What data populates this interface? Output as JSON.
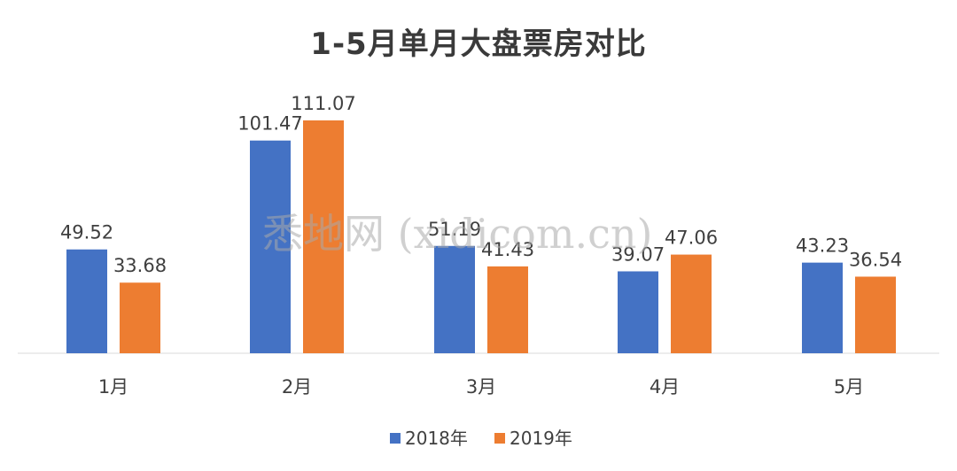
{
  "chart_data": {
    "type": "bar",
    "title": "1-5月单月大盘票房对比",
    "categories": [
      "1月",
      "2月",
      "3月",
      "4月",
      "5月"
    ],
    "series": [
      {
        "name": "2018年",
        "color": "#4472C4",
        "values": [
          49.52,
          101.47,
          51.19,
          39.07,
          43.23
        ]
      },
      {
        "name": "2019年",
        "color": "#ED7D31",
        "values": [
          33.68,
          111.07,
          41.43,
          47.06,
          36.54
        ]
      }
    ],
    "data_labels": [
      [
        "49.52",
        "101.47",
        "51.19",
        "39.07",
        "43.23"
      ],
      [
        "33.68",
        "111.07",
        "41.43",
        "47.06",
        "36.54"
      ]
    ],
    "xlabel": "",
    "ylabel": "",
    "ylim": [
      0,
      111.07
    ],
    "grid": false,
    "legend": "bottom"
  },
  "watermark": "悉地网 (xidicom.cn)"
}
